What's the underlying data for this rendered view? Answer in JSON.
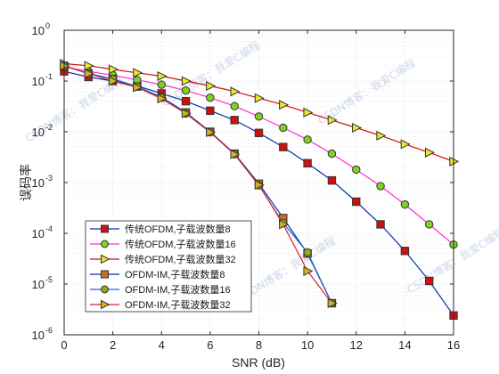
{
  "colors": {
    "axis": "#262626",
    "grid": "#d9d9d9",
    "background": "#ffffff"
  },
  "watermark": {
    "text": "CSDN博客：我爱C编程"
  },
  "chart_data": {
    "type": "line",
    "title": "",
    "xlabel": "SNR (dB)",
    "ylabel": "误码率",
    "xlim": [
      0,
      16
    ],
    "ylim": [
      1e-06,
      1
    ],
    "yscale": "log",
    "grid": true,
    "legend_position": "bottom-left",
    "x_ticks": [
      0,
      2,
      4,
      6,
      8,
      10,
      12,
      14,
      16
    ],
    "x_tick_labels": [
      "0",
      "2",
      "4",
      "6",
      "8",
      "10",
      "12",
      "14",
      "16"
    ],
    "y_ticks": [
      1e-06,
      1e-05,
      0.0001,
      0.001,
      0.01,
      0.1,
      1
    ],
    "y_tick_labels": [
      {
        "base": "10",
        "exp": "-6"
      },
      {
        "base": "10",
        "exp": "-5"
      },
      {
        "base": "10",
        "exp": "-4"
      },
      {
        "base": "10",
        "exp": "-3"
      },
      {
        "base": "10",
        "exp": "-2"
      },
      {
        "base": "10",
        "exp": "-1"
      },
      {
        "base": "10",
        "exp": "0"
      }
    ],
    "series": [
      {
        "name": "传统OFDM,子载波数量8",
        "color": "#0033aa",
        "marker": "square",
        "marker_fill": "#cc1111",
        "x": [
          0,
          1,
          2,
          3,
          4,
          5,
          6,
          7,
          8,
          9,
          10,
          11,
          12,
          13,
          14,
          15,
          16
        ],
        "y": [
          0.155,
          0.12,
          0.1,
          0.08,
          0.057,
          0.04,
          0.026,
          0.017,
          0.0095,
          0.005,
          0.0024,
          0.0011,
          0.00042,
          0.00015,
          4.5e-05,
          1.15e-05,
          2.4e-06
        ]
      },
      {
        "name": "传统OFDM,子载波数量16",
        "color": "#ff2bd6",
        "marker": "circle",
        "marker_fill": "#7ed321",
        "x": [
          0,
          1,
          2,
          3,
          4,
          5,
          6,
          7,
          8,
          9,
          10,
          11,
          12,
          13,
          14,
          15,
          16
        ],
        "y": [
          0.19,
          0.155,
          0.13,
          0.105,
          0.085,
          0.065,
          0.047,
          0.032,
          0.02,
          0.012,
          0.007,
          0.0037,
          0.0018,
          0.00085,
          0.00037,
          0.00015,
          6e-05
        ]
      },
      {
        "name": "传统OFDM,子载波数量32",
        "color": "#cc1111",
        "marker": "triangle-right",
        "marker_fill": "#e8e82a",
        "x": [
          0,
          1,
          2,
          3,
          4,
          5,
          6,
          7,
          8,
          9,
          10,
          11,
          12,
          13,
          14,
          15,
          16
        ],
        "y": [
          0.22,
          0.2,
          0.17,
          0.145,
          0.125,
          0.1,
          0.08,
          0.062,
          0.046,
          0.034,
          0.024,
          0.017,
          0.012,
          0.0084,
          0.0057,
          0.0039,
          0.0026
        ]
      },
      {
        "name": "OFDM-IM,子载波数量8",
        "color": "#0033aa",
        "marker": "square",
        "marker_fill": "#c87020",
        "x": [
          0,
          1,
          2,
          3,
          4,
          5,
          6,
          7,
          8,
          9,
          10,
          11
        ],
        "y": [
          0.2,
          0.14,
          0.11,
          0.078,
          0.048,
          0.024,
          0.01,
          0.0037,
          0.00095,
          0.0002,
          4e-05,
          4.2e-06
        ]
      },
      {
        "name": "OFDM-IM,子载波数量16",
        "color": "#1a66cc",
        "marker": "circle",
        "marker_fill": "#9aa51c",
        "x": [
          0,
          1,
          2,
          3,
          4,
          5,
          6,
          7,
          8,
          9,
          10,
          11
        ],
        "y": [
          0.2,
          0.14,
          0.11,
          0.078,
          0.047,
          0.023,
          0.0098,
          0.0036,
          0.00088,
          0.00016,
          4.2e-05,
          4.2e-06
        ]
      },
      {
        "name": "OFDM-IM,子载波数量32",
        "color": "#dd2222",
        "marker": "triangle-right",
        "marker_fill": "#d4b41e",
        "x": [
          0,
          1,
          2,
          3,
          4,
          5,
          6,
          7,
          8,
          9,
          10,
          11
        ],
        "y": [
          0.2,
          0.14,
          0.1,
          0.075,
          0.045,
          0.023,
          0.0098,
          0.0036,
          0.0009,
          0.00015,
          1.8e-05,
          4.2e-06
        ]
      }
    ]
  }
}
